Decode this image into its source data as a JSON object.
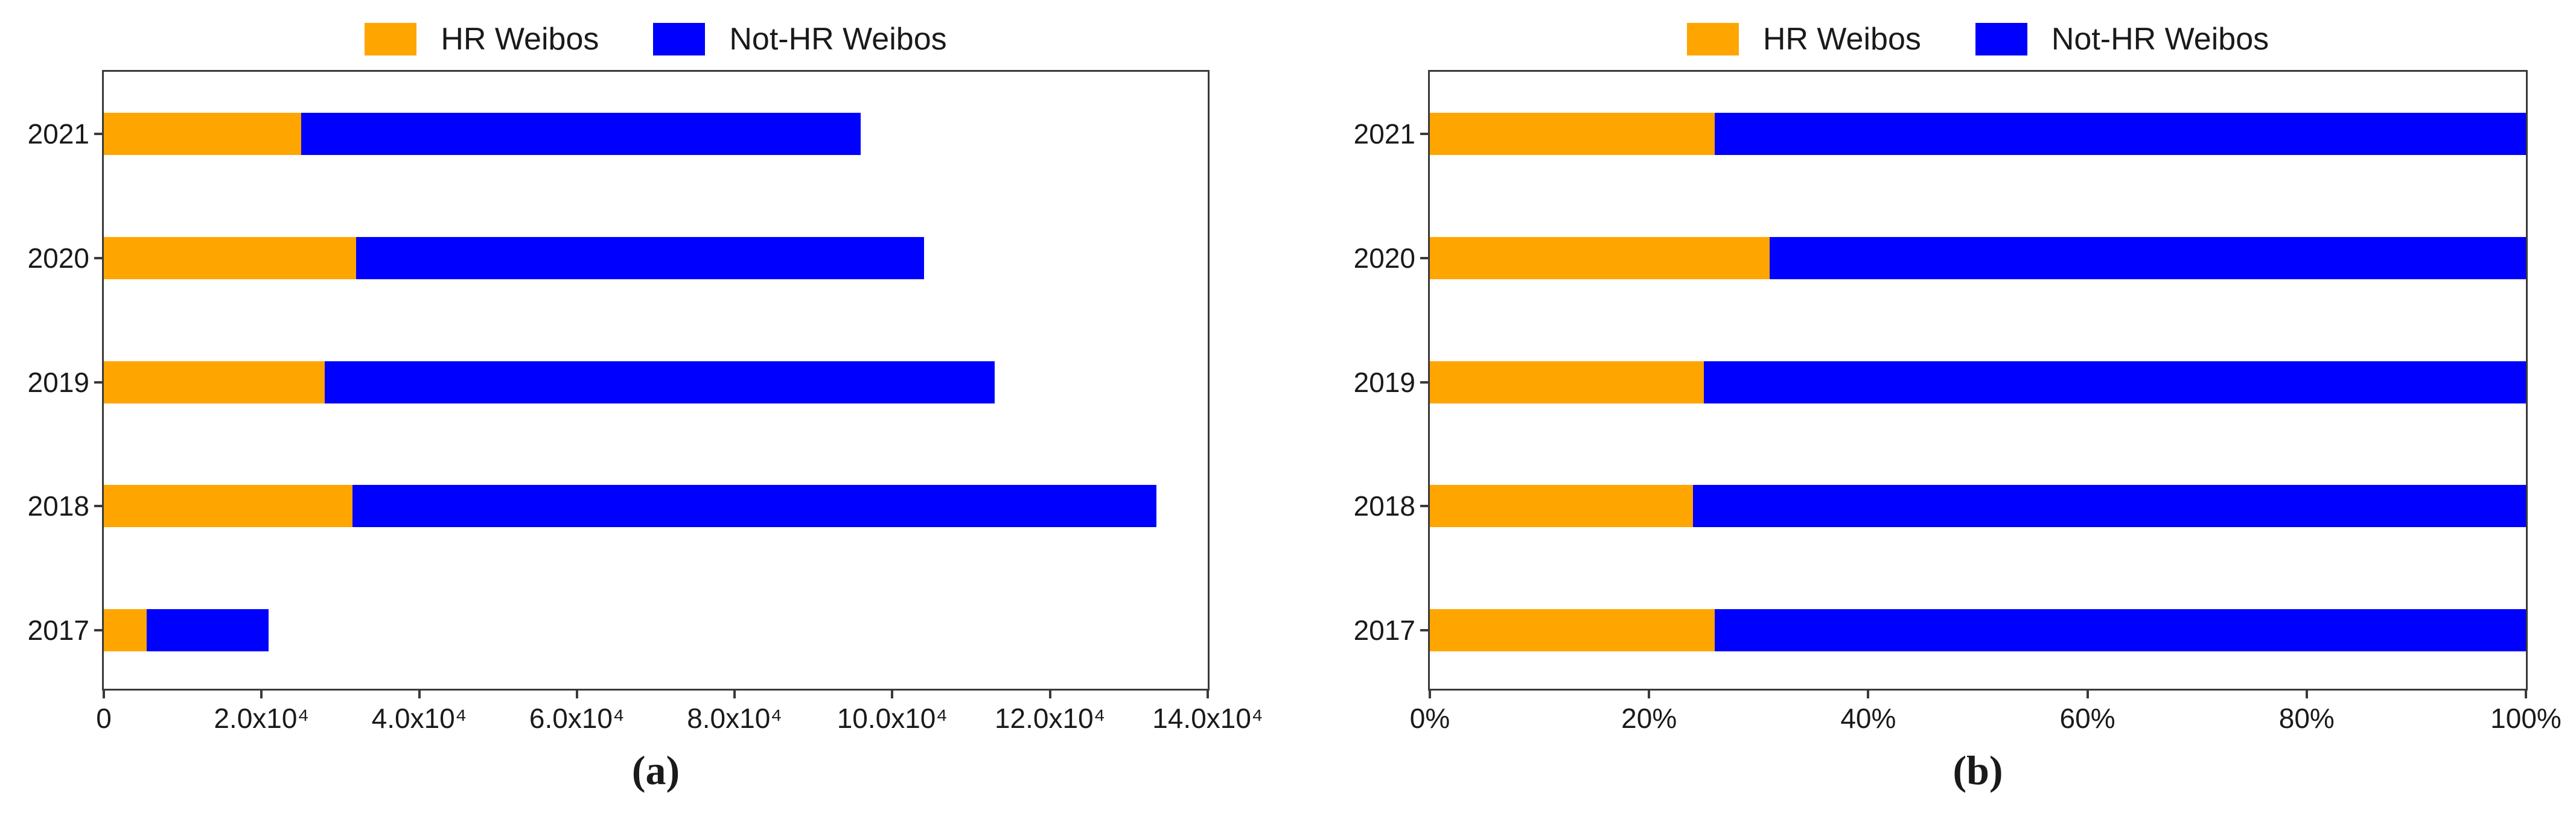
{
  "figure": {
    "background": "#ffffff",
    "panel_count": 2
  },
  "chart_data": [
    {
      "panel": "a",
      "type": "bar",
      "orientation": "horizontal",
      "stacked": true,
      "caption": "(a)",
      "title": "",
      "xlabel": "",
      "ylabel": "",
      "categories": [
        "2021",
        "2020",
        "2019",
        "2018",
        "2017"
      ],
      "series": [
        {
          "name": "HR Weibos",
          "color": "#FFA500",
          "values": [
            25000,
            32000,
            28000,
            31500,
            5400
          ]
        },
        {
          "name": "Not-HR Weibos",
          "color": "#0000FF",
          "values": [
            71000,
            72000,
            85000,
            102000,
            15500
          ]
        }
      ],
      "totals": [
        96000,
        104000,
        113000,
        133500,
        20900
      ],
      "xlim": [
        0,
        140000
      ],
      "xticks": [
        {
          "value": 0,
          "label": "0"
        },
        {
          "value": 20000,
          "label": "2.0x10⁴"
        },
        {
          "value": 40000,
          "label": "4.0x10⁴"
        },
        {
          "value": 60000,
          "label": "6.0x10⁴"
        },
        {
          "value": 80000,
          "label": "8.0x10⁴"
        },
        {
          "value": 100000,
          "label": "10.0x10⁴"
        },
        {
          "value": 120000,
          "label": "12.0x10⁴"
        },
        {
          "value": 140000,
          "label": "14.0x10⁴"
        }
      ],
      "grid": false,
      "legend_position": "top-center"
    },
    {
      "panel": "b",
      "type": "bar",
      "orientation": "horizontal",
      "stacked": true,
      "caption": "(b)",
      "title": "",
      "xlabel": "",
      "ylabel": "",
      "categories": [
        "2021",
        "2020",
        "2019",
        "2018",
        "2017"
      ],
      "series": [
        {
          "name": "HR Weibos",
          "color": "#FFA500",
          "values": [
            26,
            31,
            25,
            24,
            26
          ]
        },
        {
          "name": "Not-HR Weibos",
          "color": "#0000FF",
          "values": [
            74,
            69,
            75,
            76,
            74
          ]
        }
      ],
      "totals": [
        100,
        100,
        100,
        100,
        100
      ],
      "xlim": [
        0,
        100
      ],
      "xticks": [
        {
          "value": 0,
          "label": "0%"
        },
        {
          "value": 20,
          "label": "20%"
        },
        {
          "value": 40,
          "label": "40%"
        },
        {
          "value": 60,
          "label": "60%"
        },
        {
          "value": 80,
          "label": "80%"
        },
        {
          "value": 100,
          "label": "100%"
        }
      ],
      "grid": false,
      "legend_position": "top-center"
    }
  ]
}
